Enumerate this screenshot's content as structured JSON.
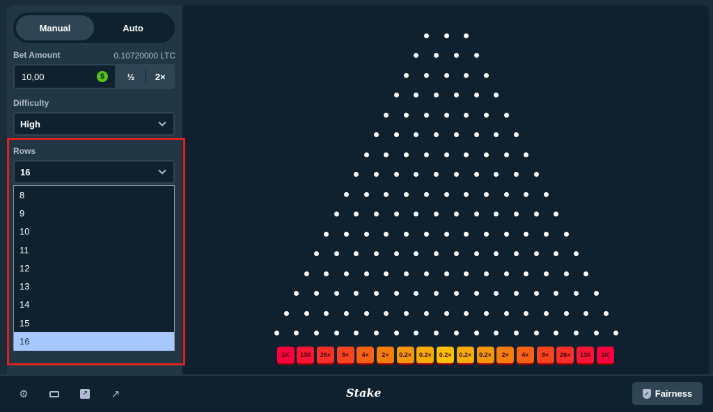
{
  "tabs": {
    "manual": "Manual",
    "auto": "Auto"
  },
  "bet": {
    "label": "Bet Amount",
    "balance": "0.10720000 LTC",
    "value": "10,00",
    "currency_icon": "$",
    "half": "½",
    "double": "2×"
  },
  "difficulty": {
    "label": "Difficulty",
    "value": "High"
  },
  "rows": {
    "label": "Rows",
    "value": "16",
    "options": [
      "8",
      "9",
      "10",
      "11",
      "12",
      "13",
      "14",
      "15",
      "16"
    ],
    "selected": "16"
  },
  "board": {
    "rows": 16
  },
  "buckets": [
    {
      "label": "1K",
      "color": "#ff003f"
    },
    {
      "label": "130",
      "color": "#fe1434"
    },
    {
      "label": "26×",
      "color": "#fc2f29"
    },
    {
      "label": "9×",
      "color": "#fb441f"
    },
    {
      "label": "4×",
      "color": "#f96114"
    },
    {
      "label": "2×",
      "color": "#f77d0a"
    },
    {
      "label": "0.2×",
      "color": "#f59604"
    },
    {
      "label": "0.2×",
      "color": "#f9ac00"
    },
    {
      "label": "0.2×",
      "color": "#ffc000"
    },
    {
      "label": "0.2×",
      "color": "#f9ac00"
    },
    {
      "label": "0.2×",
      "color": "#f59604"
    },
    {
      "label": "2×",
      "color": "#f77d0a"
    },
    {
      "label": "4×",
      "color": "#f96114"
    },
    {
      "label": "9×",
      "color": "#fb441f"
    },
    {
      "label": "26×",
      "color": "#fc2f29"
    },
    {
      "label": "130",
      "color": "#fe1434"
    },
    {
      "label": "1K",
      "color": "#ff003f"
    }
  ],
  "footer": {
    "logo": "Stake",
    "fairness": "Fairness"
  }
}
